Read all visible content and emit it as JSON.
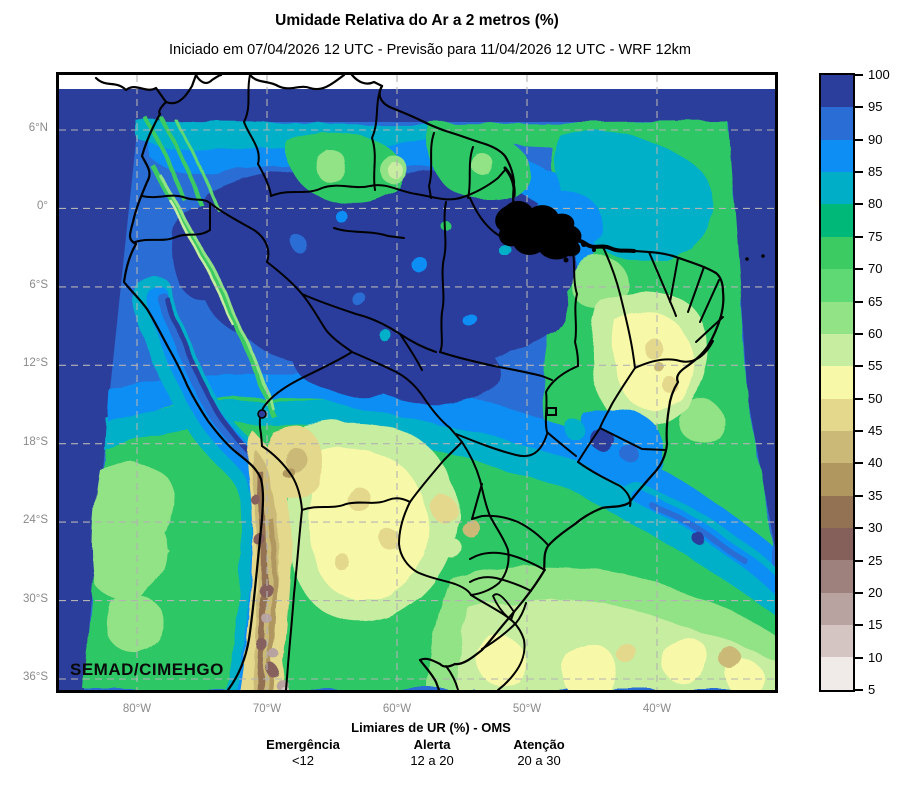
{
  "header": {
    "title": "Umidade Relativa do Ar a 2 metros (%)",
    "subtitle": "Iniciado em 07/04/2026 12 UTC - Previsão para 11/04/2026 12 UTC - WRF 12km"
  },
  "map": {
    "watermark": "SEMAD/CIMEHGO",
    "lat_ticks": [
      "6°N",
      "0°",
      "6°S",
      "12°S",
      "18°S",
      "24°S",
      "30°S",
      "36°S"
    ],
    "lon_ticks": [
      "80°W",
      "70°W",
      "60°W",
      "50°W",
      "40°W"
    ]
  },
  "colorbar": {
    "tick_labels": [
      "100",
      "95",
      "90",
      "85",
      "80",
      "75",
      "70",
      "65",
      "60",
      "55",
      "50",
      "45",
      "40",
      "35",
      "30",
      "25",
      "20",
      "15",
      "10",
      "5"
    ],
    "cell_colors_top_to_bottom": [
      "#2c3e9c",
      "#2a6dd4",
      "#0d8ef5",
      "#00aec8",
      "#00b877",
      "#3bcb62",
      "#5fd973",
      "#92e286",
      "#c6eda0",
      "#f8f9a8",
      "#e3d88c",
      "#cbb977",
      "#b0975f",
      "#937253",
      "#85605b",
      "#9e807d",
      "#b8a3a1",
      "#d4c5c3",
      "#f0eae9"
    ]
  },
  "footer": {
    "title": "Limiares de UR (%) - OMS",
    "thresholds": [
      {
        "label": "Emergência",
        "range": "<12"
      },
      {
        "label": "Alerta",
        "range": "12 a 20"
      },
      {
        "label": "Atenção",
        "range": "20 a 30"
      }
    ]
  },
  "chart_data": {
    "type": "heatmap",
    "title": "Umidade Relativa do Ar a 2 metros (%)",
    "subtitle": "Iniciado em 07/04/2026 12 UTC - Previsão para 11/04/2026 12 UTC - WRF 12km",
    "variable": "Umidade Relativa do Ar a 2 metros",
    "units": "%",
    "model": "WRF 12km",
    "init_time": "07/04/2026 12 UTC",
    "valid_time": "11/04/2026 12 UTC",
    "source": "SEMAD/CIMEHGO",
    "lat_ticks": [
      "6°N",
      "0°",
      "6°S",
      "12°S",
      "18°S",
      "24°S",
      "30°S",
      "36°S"
    ],
    "lon_ticks": [
      "80°W",
      "70°W",
      "60°W",
      "50°W",
      "40°W"
    ],
    "scale_levels": [
      5,
      10,
      15,
      20,
      25,
      30,
      35,
      40,
      45,
      50,
      55,
      60,
      65,
      70,
      75,
      80,
      85,
      90,
      95,
      100
    ],
    "scale_colors_low_to_high": [
      "#f0eae9",
      "#d4c5c3",
      "#b8a3a1",
      "#9e807d",
      "#85605b",
      "#937253",
      "#b0975f",
      "#cbb977",
      "#e3d88c",
      "#f8f9a8",
      "#c6eda0",
      "#92e286",
      "#5fd973",
      "#3bcb62",
      "#00b877",
      "#00aec8",
      "#0d8ef5",
      "#2a6dd4",
      "#2c3e9c"
    ],
    "legend_position": "right",
    "grid": "dashed lat/lon graticule",
    "regions_summary": [
      {
        "area": "Amazon basin and NW Brazil",
        "humidity_pct": "90-100"
      },
      {
        "area": "Pacific and N Atlantic ocean margins",
        "humidity_pct": "95-100"
      },
      {
        "area": "NE Atlantic coastal waters",
        "humidity_pct": "70-80"
      },
      {
        "area": "Interior Northeast Brazil (Bahia)",
        "humidity_pct": "50-60"
      },
      {
        "area": "Paraguay / N Argentina (Chaco)",
        "humidity_pct": "50-60"
      },
      {
        "area": "Andes cordillera (Chile/Argentina)",
        "humidity_pct": "10-45"
      },
      {
        "area": "Southern Brazil / Uruguay",
        "humidity_pct": "65-80"
      }
    ],
    "who_thresholds": [
      {
        "label": "Emergência",
        "range": "<12"
      },
      {
        "label": "Alerta",
        "range": "12 a 20"
      },
      {
        "label": "Atenção",
        "range": "20 a 30"
      }
    ]
  }
}
